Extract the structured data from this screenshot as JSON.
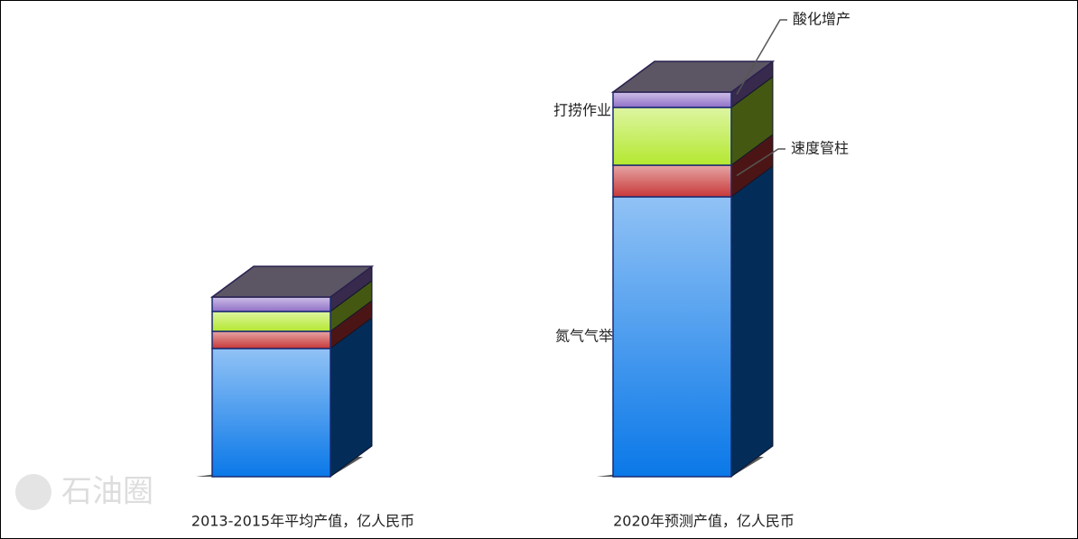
{
  "chart_data": {
    "type": "bar3d_stacked",
    "categories": [
      "2013-2015年平均产值，亿人民币",
      "2020年预测产值，亿人民币"
    ],
    "series": [
      {
        "name": "氮气气举",
        "color": "#0a78e8",
        "values": [
          142,
          310
        ]
      },
      {
        "name": "速度管柱",
        "color": "#c83838",
        "values": [
          19,
          35
        ]
      },
      {
        "name": "打捞作业",
        "color": "#b4e830",
        "values": [
          22,
          64
        ]
      },
      {
        "name": "酸化增产",
        "color": "#9070c8",
        "values": [
          16,
          17
        ]
      }
    ],
    "watermark": "石油圈"
  }
}
